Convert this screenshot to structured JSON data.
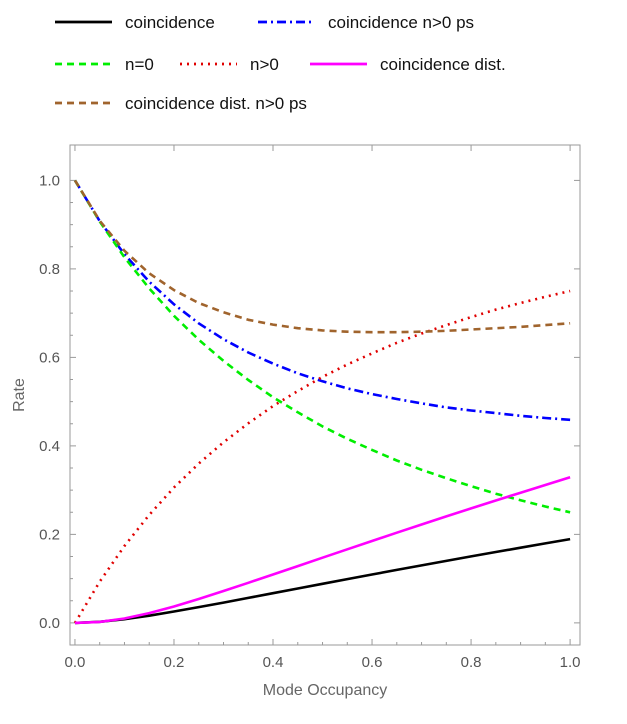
{
  "chart_data": {
    "type": "line",
    "title": "",
    "xlabel": "Mode Occupancy",
    "ylabel": "Rate",
    "xlim": [
      -0.01,
      1.02
    ],
    "ylim": [
      -0.05,
      1.08
    ],
    "x_ticks": [
      0.0,
      0.2,
      0.4,
      0.6,
      0.8,
      1.0
    ],
    "x_tick_labels": [
      "0.0",
      "0.2",
      "0.4",
      "0.6",
      "0.8",
      "1.0"
    ],
    "y_ticks": [
      0.0,
      0.2,
      0.4,
      0.6,
      0.8,
      1.0
    ],
    "y_tick_labels": [
      "0.0",
      "0.2",
      "0.4",
      "0.6",
      "0.8",
      "1.0"
    ],
    "grid": false,
    "frame": true,
    "legend_position": "top",
    "x": [
      0.0,
      0.05,
      0.1,
      0.15,
      0.2,
      0.25,
      0.3,
      0.35,
      0.4,
      0.45,
      0.5,
      0.55,
      0.6,
      0.65,
      0.7,
      0.75,
      0.8,
      0.85,
      0.9,
      0.95,
      1.0
    ],
    "series": [
      {
        "name": "coincidence",
        "color": "#000000",
        "dash": "solid",
        "values": [
          0.0,
          0.0024,
          0.0083,
          0.0163,
          0.0256,
          0.0356,
          0.0459,
          0.0565,
          0.0671,
          0.0777,
          0.0884,
          0.0989,
          0.1094,
          0.1198,
          0.13,
          0.1401,
          0.1502,
          0.1601,
          0.1699,
          0.1797,
          0.1894
        ]
      },
      {
        "name": "coincidence n>0 ps",
        "color": "#0000ff",
        "dash": "dashdot",
        "values": [
          1.0,
          0.908,
          0.833,
          0.771,
          0.72,
          0.677,
          0.641,
          0.611,
          0.586,
          0.564,
          0.546,
          0.53,
          0.517,
          0.506,
          0.496,
          0.487,
          0.48,
          0.474,
          0.468,
          0.463,
          0.459
        ]
      },
      {
        "name": "n=0",
        "color": "#00ee00",
        "dash": "dashed",
        "values": [
          1.0,
          0.907,
          0.826,
          0.756,
          0.694,
          0.64,
          0.592,
          0.549,
          0.51,
          0.476,
          0.444,
          0.416,
          0.391,
          0.367,
          0.346,
          0.327,
          0.309,
          0.292,
          0.277,
          0.263,
          0.25
        ]
      },
      {
        "name": "n>0",
        "color": "#e00000",
        "dash": "dotted",
        "values": [
          0.0,
          0.093,
          0.174,
          0.244,
          0.306,
          0.36,
          0.408,
          0.451,
          0.49,
          0.524,
          0.556,
          0.584,
          0.609,
          0.633,
          0.654,
          0.673,
          0.691,
          0.708,
          0.723,
          0.737,
          0.75
        ]
      },
      {
        "name": "coincidence dist.",
        "color": "#ff00ff",
        "dash": "solid",
        "values": [
          0.0,
          0.0023,
          0.01,
          0.022,
          0.037,
          0.054,
          0.072,
          0.0905,
          0.1093,
          0.1283,
          0.1473,
          0.1663,
          0.1851,
          0.2038,
          0.2223,
          0.2406,
          0.2587,
          0.2766,
          0.2943,
          0.3117,
          0.329
        ]
      },
      {
        "name": "coincidence dist. n>0 ps",
        "color": "#a0642d",
        "dash": "dashed",
        "values": [
          1.0,
          0.909,
          0.841,
          0.79,
          0.752,
          0.723,
          0.702,
          0.685,
          0.674,
          0.666,
          0.661,
          0.658,
          0.657,
          0.657,
          0.658,
          0.66,
          0.663,
          0.666,
          0.669,
          0.673,
          0.677
        ]
      }
    ]
  }
}
